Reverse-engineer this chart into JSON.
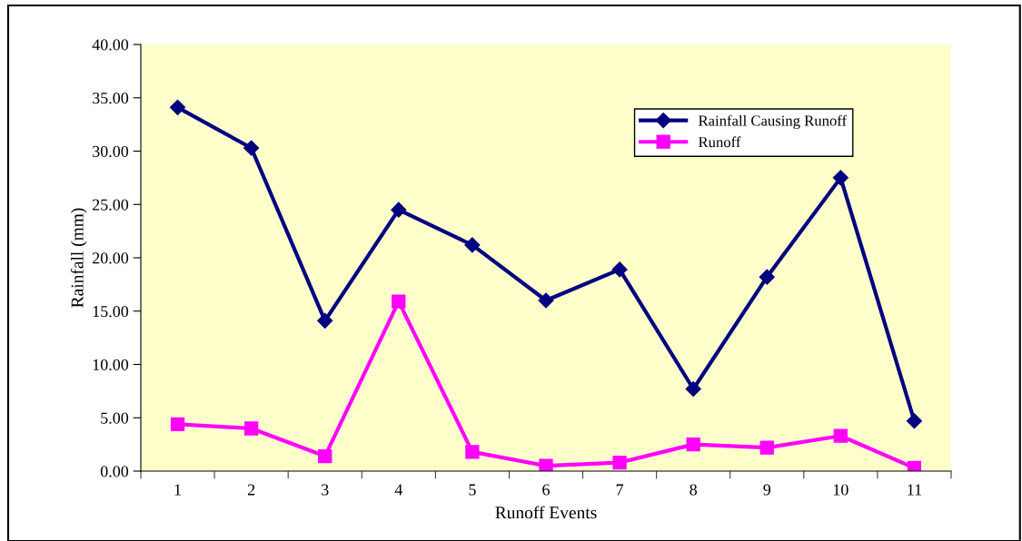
{
  "chart_data": {
    "type": "line",
    "xlabel": "Runoff Events",
    "ylabel": "Rainfall (mm)",
    "categories": [
      "1",
      "2",
      "3",
      "4",
      "5",
      "6",
      "7",
      "8",
      "9",
      "10",
      "11"
    ],
    "series": [
      {
        "name": "Rainfall Causing Runoff",
        "color": "#000080",
        "marker": "diamond",
        "values": [
          34.1,
          30.3,
          14.1,
          24.5,
          21.2,
          16.0,
          18.9,
          7.7,
          18.2,
          27.5,
          4.7
        ]
      },
      {
        "name": "Runoff",
        "color": "#ff00ff",
        "marker": "square",
        "values": [
          4.4,
          4.0,
          1.4,
          15.9,
          1.8,
          0.5,
          0.8,
          2.5,
          2.2,
          3.3,
          0.3
        ]
      }
    ],
    "ylim": [
      0,
      40
    ],
    "yticks": [
      {
        "value": 0,
        "label": "0.00"
      },
      {
        "value": 5,
        "label": "5.00"
      },
      {
        "value": 10,
        "label": "10.00"
      },
      {
        "value": 15,
        "label": "15.00"
      },
      {
        "value": 20,
        "label": "20.00"
      },
      {
        "value": 25,
        "label": "25.00"
      },
      {
        "value": 30,
        "label": "30.00"
      },
      {
        "value": 35,
        "label": "35.00"
      },
      {
        "value": 40,
        "label": "40.00"
      }
    ],
    "grid": false,
    "legend": "top right",
    "line_style": "solid"
  }
}
